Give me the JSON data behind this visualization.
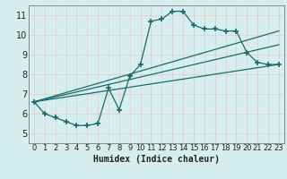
{
  "xlabel": "Humidex (Indice chaleur)",
  "background_color": "#d6eeee",
  "grid_color": "#c0d8d8",
  "line_color": "#1a6b6b",
  "xlim": [
    -0.5,
    23.5
  ],
  "ylim": [
    4.5,
    11.5
  ],
  "xticks": [
    0,
    1,
    2,
    3,
    4,
    5,
    6,
    7,
    8,
    9,
    10,
    11,
    12,
    13,
    14,
    15,
    16,
    17,
    18,
    19,
    20,
    21,
    22,
    23
  ],
  "yticks": [
    5,
    6,
    7,
    8,
    9,
    10,
    11
  ],
  "main_x": [
    0,
    1,
    2,
    3,
    4,
    5,
    6,
    7,
    8,
    9,
    10,
    11,
    12,
    13,
    14,
    15,
    16,
    17,
    18,
    19,
    20,
    21,
    22,
    23
  ],
  "main_y": [
    6.6,
    6.0,
    5.8,
    5.6,
    5.4,
    5.4,
    5.5,
    7.3,
    6.2,
    7.9,
    8.5,
    10.7,
    10.8,
    11.2,
    11.2,
    10.5,
    10.3,
    10.3,
    10.2,
    10.2,
    9.1,
    8.6,
    8.5,
    8.5
  ],
  "line1_x": [
    0,
    23
  ],
  "line1_y": [
    6.6,
    8.5
  ],
  "line2_x": [
    0,
    23
  ],
  "line2_y": [
    6.6,
    9.5
  ],
  "line3_x": [
    0,
    23
  ],
  "line3_y": [
    6.6,
    10.2
  ]
}
